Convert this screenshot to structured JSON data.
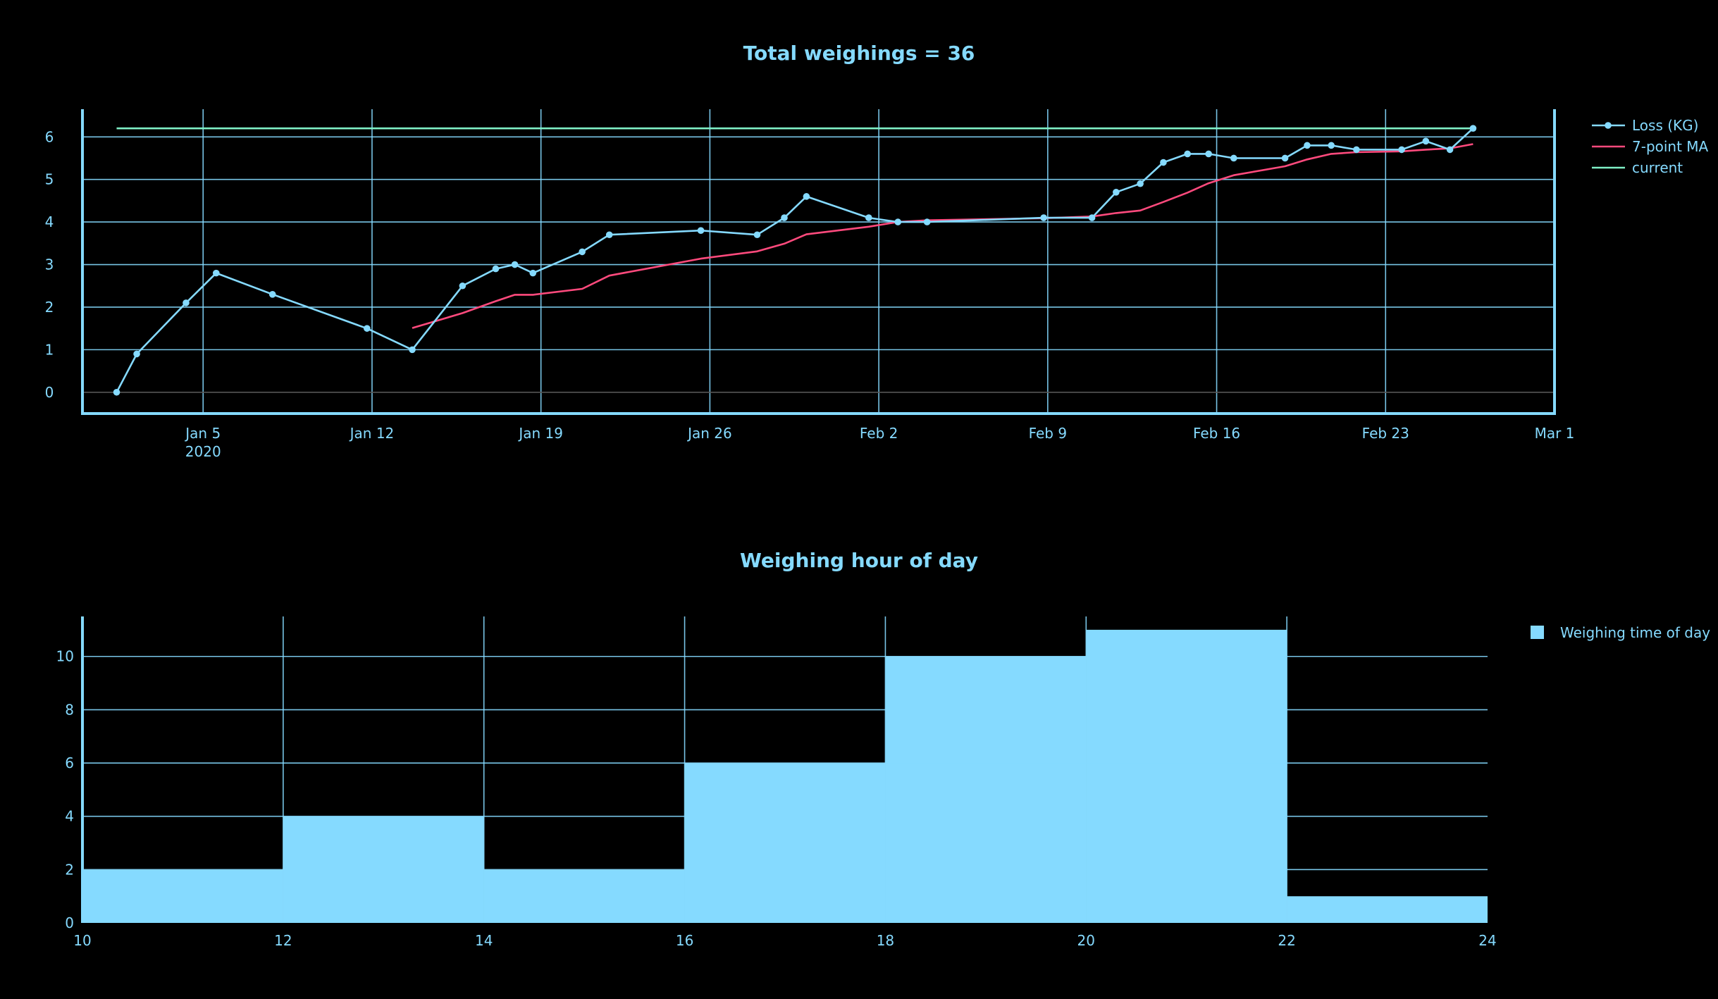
{
  "chart_data": [
    {
      "type": "line",
      "title": "Total weighings = 36",
      "xlabel": "",
      "ylabel": "",
      "x_axis": {
        "type": "date",
        "range": [
          "2019-12-31",
          "2020-03-01"
        ],
        "ticks": [
          {
            "value": "2020-01-05",
            "label": "Jan 5",
            "sublabel": "2020"
          },
          {
            "value": "2020-01-12",
            "label": "Jan 12"
          },
          {
            "value": "2020-01-19",
            "label": "Jan 19"
          },
          {
            "value": "2020-01-26",
            "label": "Jan 26"
          },
          {
            "value": "2020-02-02",
            "label": "Feb 2"
          },
          {
            "value": "2020-02-09",
            "label": "Feb 9"
          },
          {
            "value": "2020-02-16",
            "label": "Feb 16"
          },
          {
            "value": "2020-02-23",
            "label": "Feb 23"
          },
          {
            "value": "2020-03-01",
            "label": "Mar 1"
          }
        ]
      },
      "y_axis": {
        "range": [
          -0.5,
          6.65
        ],
        "ticks": [
          0,
          1,
          2,
          3,
          4,
          5,
          6
        ]
      },
      "grid": true,
      "legend_position": "top-right, outside",
      "series": [
        {
          "name": "Loss (KG)",
          "color": "#85daff",
          "mode": "lines+markers",
          "points": [
            {
              "x": "2020-01-01 10:00",
              "y": 0
            },
            {
              "x": "2020-01-02 06:00",
              "y": 0.9
            },
            {
              "x": "2020-01-04 07:00",
              "y": 2.1
            },
            {
              "x": "2020-01-05 13:00",
              "y": 2.8
            },
            {
              "x": "2020-01-07 21:00",
              "y": 2.3
            },
            {
              "x": "2020-01-11 19:00",
              "y": 1.5
            },
            {
              "x": "2020-01-13 16:00",
              "y": 1.0
            },
            {
              "x": "2020-01-15 18:00",
              "y": 2.5
            },
            {
              "x": "2020-01-17 03:00",
              "y": 2.9
            },
            {
              "x": "2020-01-17 22:00",
              "y": 3.0
            },
            {
              "x": "2020-01-18 16:00",
              "y": 2.8
            },
            {
              "x": "2020-01-20 17:00",
              "y": 3.3
            },
            {
              "x": "2020-01-21 20:00",
              "y": 3.7
            },
            {
              "x": "2020-01-25 15:00",
              "y": 3.8
            },
            {
              "x": "2020-01-27 23:00",
              "y": 3.7
            },
            {
              "x": "2020-01-29 02:00",
              "y": 4.1
            },
            {
              "x": "2020-01-30 00:00",
              "y": 4.6
            },
            {
              "x": "2020-02-01 14:00",
              "y": 4.1
            },
            {
              "x": "2020-02-02 19:00",
              "y": 4.0
            },
            {
              "x": "2020-02-04 00:00",
              "y": 4.0
            },
            {
              "x": "2020-02-08 20:00",
              "y": 4.1
            },
            {
              "x": "2020-02-10 20:00",
              "y": 4.1
            },
            {
              "x": "2020-02-11 20:00",
              "y": 4.7
            },
            {
              "x": "2020-02-12 20:00",
              "y": 4.9
            },
            {
              "x": "2020-02-13 19:00",
              "y": 5.4
            },
            {
              "x": "2020-02-14 19:00",
              "y": 5.6
            },
            {
              "x": "2020-02-15 16:00",
              "y": 5.6
            },
            {
              "x": "2020-02-16 17:00",
              "y": 5.5
            },
            {
              "x": "2020-02-18 20:00",
              "y": 5.5
            },
            {
              "x": "2020-02-19 18:00",
              "y": 5.8
            },
            {
              "x": "2020-02-20 18:00",
              "y": 5.8
            },
            {
              "x": "2020-02-21 19:00",
              "y": 5.7
            },
            {
              "x": "2020-02-23 16:00",
              "y": 5.7
            },
            {
              "x": "2020-02-24 16:00",
              "y": 5.9
            },
            {
              "x": "2020-02-25 16:00",
              "y": 5.7
            },
            {
              "x": "2020-02-26 15:00",
              "y": 6.2
            }
          ]
        },
        {
          "name": "7-point MA",
          "color": "#ff4a7d",
          "mode": "lines",
          "points": [
            {
              "x": "2020-01-13 16:00",
              "y": 1.51
            },
            {
              "x": "2020-01-15 18:00",
              "y": 1.86
            },
            {
              "x": "2020-01-17 03:00",
              "y": 2.14
            },
            {
              "x": "2020-01-17 22:00",
              "y": 2.29
            },
            {
              "x": "2020-01-18 16:00",
              "y": 2.29
            },
            {
              "x": "2020-01-20 17:00",
              "y": 2.43
            },
            {
              "x": "2020-01-21 20:00",
              "y": 2.74
            },
            {
              "x": "2020-01-25 15:00",
              "y": 3.14
            },
            {
              "x": "2020-01-27 23:00",
              "y": 3.31
            },
            {
              "x": "2020-01-29 02:00",
              "y": 3.49
            },
            {
              "x": "2020-01-30 00:00",
              "y": 3.71
            },
            {
              "x": "2020-02-01 14:00",
              "y": 3.89
            },
            {
              "x": "2020-02-02 19:00",
              "y": 4.0
            },
            {
              "x": "2020-02-04 00:00",
              "y": 4.04
            },
            {
              "x": "2020-02-08 20:00",
              "y": 4.09
            },
            {
              "x": "2020-02-10 20:00",
              "y": 4.13
            },
            {
              "x": "2020-02-11 20:00",
              "y": 4.21
            },
            {
              "x": "2020-02-12 20:00",
              "y": 4.27
            },
            {
              "x": "2020-02-13 19:00",
              "y": 4.47
            },
            {
              "x": "2020-02-14 19:00",
              "y": 4.69
            },
            {
              "x": "2020-02-15 16:00",
              "y": 4.91
            },
            {
              "x": "2020-02-16 17:00",
              "y": 5.1
            },
            {
              "x": "2020-02-18 20:00",
              "y": 5.31
            },
            {
              "x": "2020-02-19 18:00",
              "y": 5.47
            },
            {
              "x": "2020-02-20 18:00",
              "y": 5.6
            },
            {
              "x": "2020-02-21 19:00",
              "y": 5.64
            },
            {
              "x": "2020-02-23 16:00",
              "y": 5.66
            },
            {
              "x": "2020-02-24 16:00",
              "y": 5.7
            },
            {
              "x": "2020-02-25 16:00",
              "y": 5.73
            },
            {
              "x": "2020-02-26 15:00",
              "y": 5.83
            }
          ]
        },
        {
          "name": "current",
          "color": "#7ff0c6",
          "mode": "lines",
          "points": [
            {
              "x": "2020-01-01 10:00",
              "y": 6.2
            },
            {
              "x": "2020-02-26 15:00",
              "y": 6.2
            }
          ]
        }
      ]
    },
    {
      "type": "bar",
      "title": "Weighing hour of day",
      "xlabel": "",
      "ylabel": "",
      "x_axis": {
        "range": [
          10,
          24
        ],
        "ticks": [
          10,
          12,
          14,
          16,
          18,
          20,
          22,
          24
        ]
      },
      "y_axis": {
        "range": [
          0,
          11.5
        ],
        "ticks": [
          0,
          2,
          4,
          6,
          8,
          10
        ]
      },
      "grid": true,
      "legend_position": "top-right, outside",
      "series": [
        {
          "name": "Weighing time of day",
          "color": "#85daff",
          "bins": [
            {
              "start": 10,
              "end": 12,
              "count": 2
            },
            {
              "start": 12,
              "end": 14,
              "count": 4
            },
            {
              "start": 14,
              "end": 16,
              "count": 2
            },
            {
              "start": 16,
              "end": 18,
              "count": 6
            },
            {
              "start": 18,
              "end": 20,
              "count": 10
            },
            {
              "start": 20,
              "end": 22,
              "count": 11
            },
            {
              "start": 22,
              "end": 24,
              "count": 1
            }
          ]
        }
      ]
    }
  ]
}
